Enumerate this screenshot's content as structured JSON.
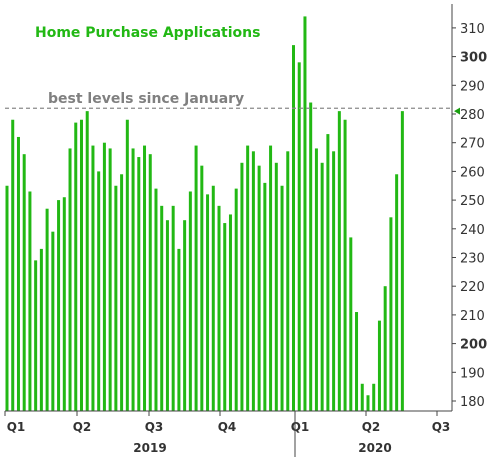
{
  "chart_data": {
    "type": "bar",
    "title": "Home Purchase Applications",
    "xlabel": "",
    "ylabel": "",
    "ylim": [
      175,
      318
    ],
    "yticks": [
      180,
      190,
      200,
      210,
      220,
      230,
      240,
      250,
      260,
      270,
      280,
      290,
      300,
      310
    ],
    "bold_yticks": [
      200,
      300
    ],
    "grid": false,
    "legend": "none",
    "quarters": [
      "Q1",
      "Q2",
      "Q3",
      "Q4",
      "Q1",
      "Q2",
      "Q3"
    ],
    "years": [
      "2019",
      "2020"
    ],
    "reference_line": {
      "value": 282,
      "label": "best levels since January"
    },
    "last_value_marker": 281,
    "values": [
      255,
      278,
      272,
      266,
      253,
      229,
      233,
      247,
      239,
      250,
      251,
      268,
      277,
      278,
      281,
      269,
      260,
      270,
      268,
      255,
      259,
      278,
      268,
      265,
      269,
      266,
      254,
      248,
      243,
      248,
      233,
      243,
      253,
      269,
      262,
      252,
      255,
      248,
      242,
      245,
      254,
      263,
      269,
      267,
      262,
      256,
      269,
      263,
      255,
      267,
      304,
      298,
      314,
      284,
      268,
      263,
      273,
      267,
      281,
      278,
      237,
      211,
      186,
      182,
      186,
      208,
      220,
      244,
      259,
      281
    ]
  },
  "colors": {
    "bar": "#22b814",
    "title": "#22b814",
    "reference": "#8a8a8a",
    "axis": "#444444",
    "marker": "#1a9e10"
  }
}
